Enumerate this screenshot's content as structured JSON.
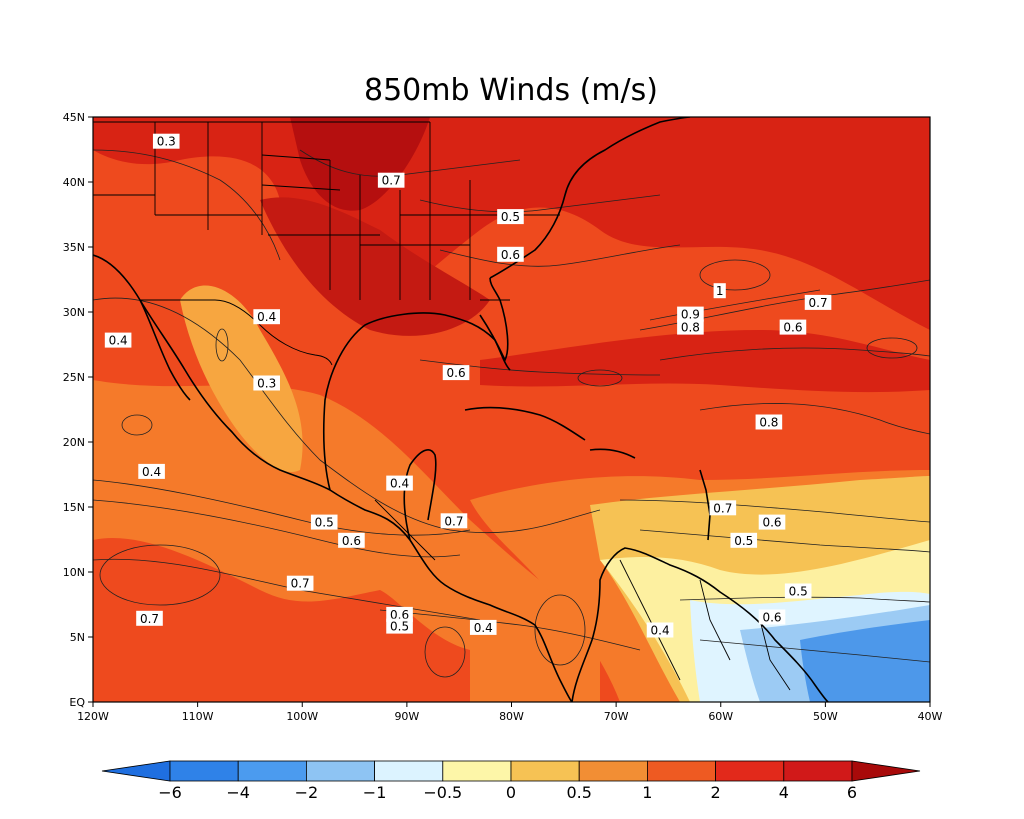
{
  "title": "850mb Winds (m/s)",
  "map": {
    "lon_range": [
      -120,
      -40
    ],
    "lat_range": [
      0,
      45
    ],
    "lon_ticks": [
      {
        "v": -120,
        "label": "120W"
      },
      {
        "v": -110,
        "label": "110W"
      },
      {
        "v": -100,
        "label": "100W"
      },
      {
        "v": -90,
        "label": "90W"
      },
      {
        "v": -80,
        "label": "80W"
      },
      {
        "v": -70,
        "label": "70W"
      },
      {
        "v": -60,
        "label": "60W"
      },
      {
        "v": -50,
        "label": "50W"
      },
      {
        "v": -40,
        "label": "40W"
      }
    ],
    "lat_ticks": [
      {
        "v": 0,
        "label": "EQ"
      },
      {
        "v": 5,
        "label": "5N"
      },
      {
        "v": 10,
        "label": "10N"
      },
      {
        "v": 15,
        "label": "15N"
      },
      {
        "v": 20,
        "label": "20N"
      },
      {
        "v": 25,
        "label": "25N"
      },
      {
        "v": 30,
        "label": "30N"
      },
      {
        "v": 35,
        "label": "35N"
      },
      {
        "v": 40,
        "label": "40N"
      },
      {
        "v": 45,
        "label": "45N"
      }
    ]
  },
  "contour_labels": [
    {
      "text": "0.3",
      "lon": -113,
      "lat": 43.1
    },
    {
      "text": "0.7",
      "lon": -91.5,
      "lat": 40.1
    },
    {
      "text": "0.5",
      "lon": -80.1,
      "lat": 37.3
    },
    {
      "text": "0.6",
      "lon": -80.1,
      "lat": 34.4
    },
    {
      "text": "0.4",
      "lon": -117.6,
      "lat": 27.8
    },
    {
      "text": "0.4",
      "lon": -103.4,
      "lat": 29.6
    },
    {
      "text": "0.3",
      "lon": -103.4,
      "lat": 24.5
    },
    {
      "text": "0.6",
      "lon": -85.3,
      "lat": 25.3
    },
    {
      "text": "1",
      "lon": -60.1,
      "lat": 31.6
    },
    {
      "text": "0.9",
      "lon": -62.9,
      "lat": 29.8
    },
    {
      "text": "0.8",
      "lon": -62.9,
      "lat": 28.8
    },
    {
      "text": "0.7",
      "lon": -50.7,
      "lat": 30.7
    },
    {
      "text": "0.6",
      "lon": -53.1,
      "lat": 28.8
    },
    {
      "text": "0.8",
      "lon": -55.4,
      "lat": 21.5
    },
    {
      "text": "0.4",
      "lon": -114.4,
      "lat": 17.7
    },
    {
      "text": "0.4",
      "lon": -90.7,
      "lat": 16.8
    },
    {
      "text": "0.5",
      "lon": -97.9,
      "lat": 13.8
    },
    {
      "text": "0.6",
      "lon": -95.3,
      "lat": 12.4
    },
    {
      "text": "0.7",
      "lon": -85.5,
      "lat": 13.9
    },
    {
      "text": "0.7",
      "lon": -59.8,
      "lat": 14.9
    },
    {
      "text": "0.6",
      "lon": -55.1,
      "lat": 13.8
    },
    {
      "text": "0.5",
      "lon": -57.8,
      "lat": 12.4
    },
    {
      "text": "0.7",
      "lon": -100.2,
      "lat": 9.1
    },
    {
      "text": "0.5",
      "lon": -52.6,
      "lat": 8.5
    },
    {
      "text": "0.7",
      "lon": -114.6,
      "lat": 6.4
    },
    {
      "text": "0.6",
      "lon": -90.7,
      "lat": 6.7
    },
    {
      "text": "0.5",
      "lon": -90.7,
      "lat": 5.8
    },
    {
      "text": "0.4",
      "lon": -82.7,
      "lat": 5.7
    },
    {
      "text": "0.6",
      "lon": -55.1,
      "lat": 6.5
    },
    {
      "text": "0.4",
      "lon": -65.8,
      "lat": 5.5
    }
  ],
  "colorbar": {
    "colors": [
      "#1f6fe0",
      "#2f82e8",
      "#4b9bef",
      "#8ec4f3",
      "#dcf3ff",
      "#fdf6a8",
      "#f6c254",
      "#f28e34",
      "#ee5a22",
      "#e2291b",
      "#d11919",
      "#a80a0a"
    ],
    "tick_labels": [
      "-6",
      "-4",
      "-2",
      "-1",
      "-0.5",
      "0",
      "0.5",
      "1",
      "2",
      "4",
      "6"
    ]
  },
  "palette": {
    "deep_red": "#b50f0f",
    "red": "#d82314",
    "orange_red": "#ee4a1e",
    "orange": "#f57a2a",
    "light_orange": "#f7a640",
    "yellow_orange": "#f6c254",
    "pale_yellow": "#fdf0a0",
    "pale_blue": "#dff4ff",
    "light_blue": "#9ccbf4",
    "blue": "#4d98ea"
  }
}
